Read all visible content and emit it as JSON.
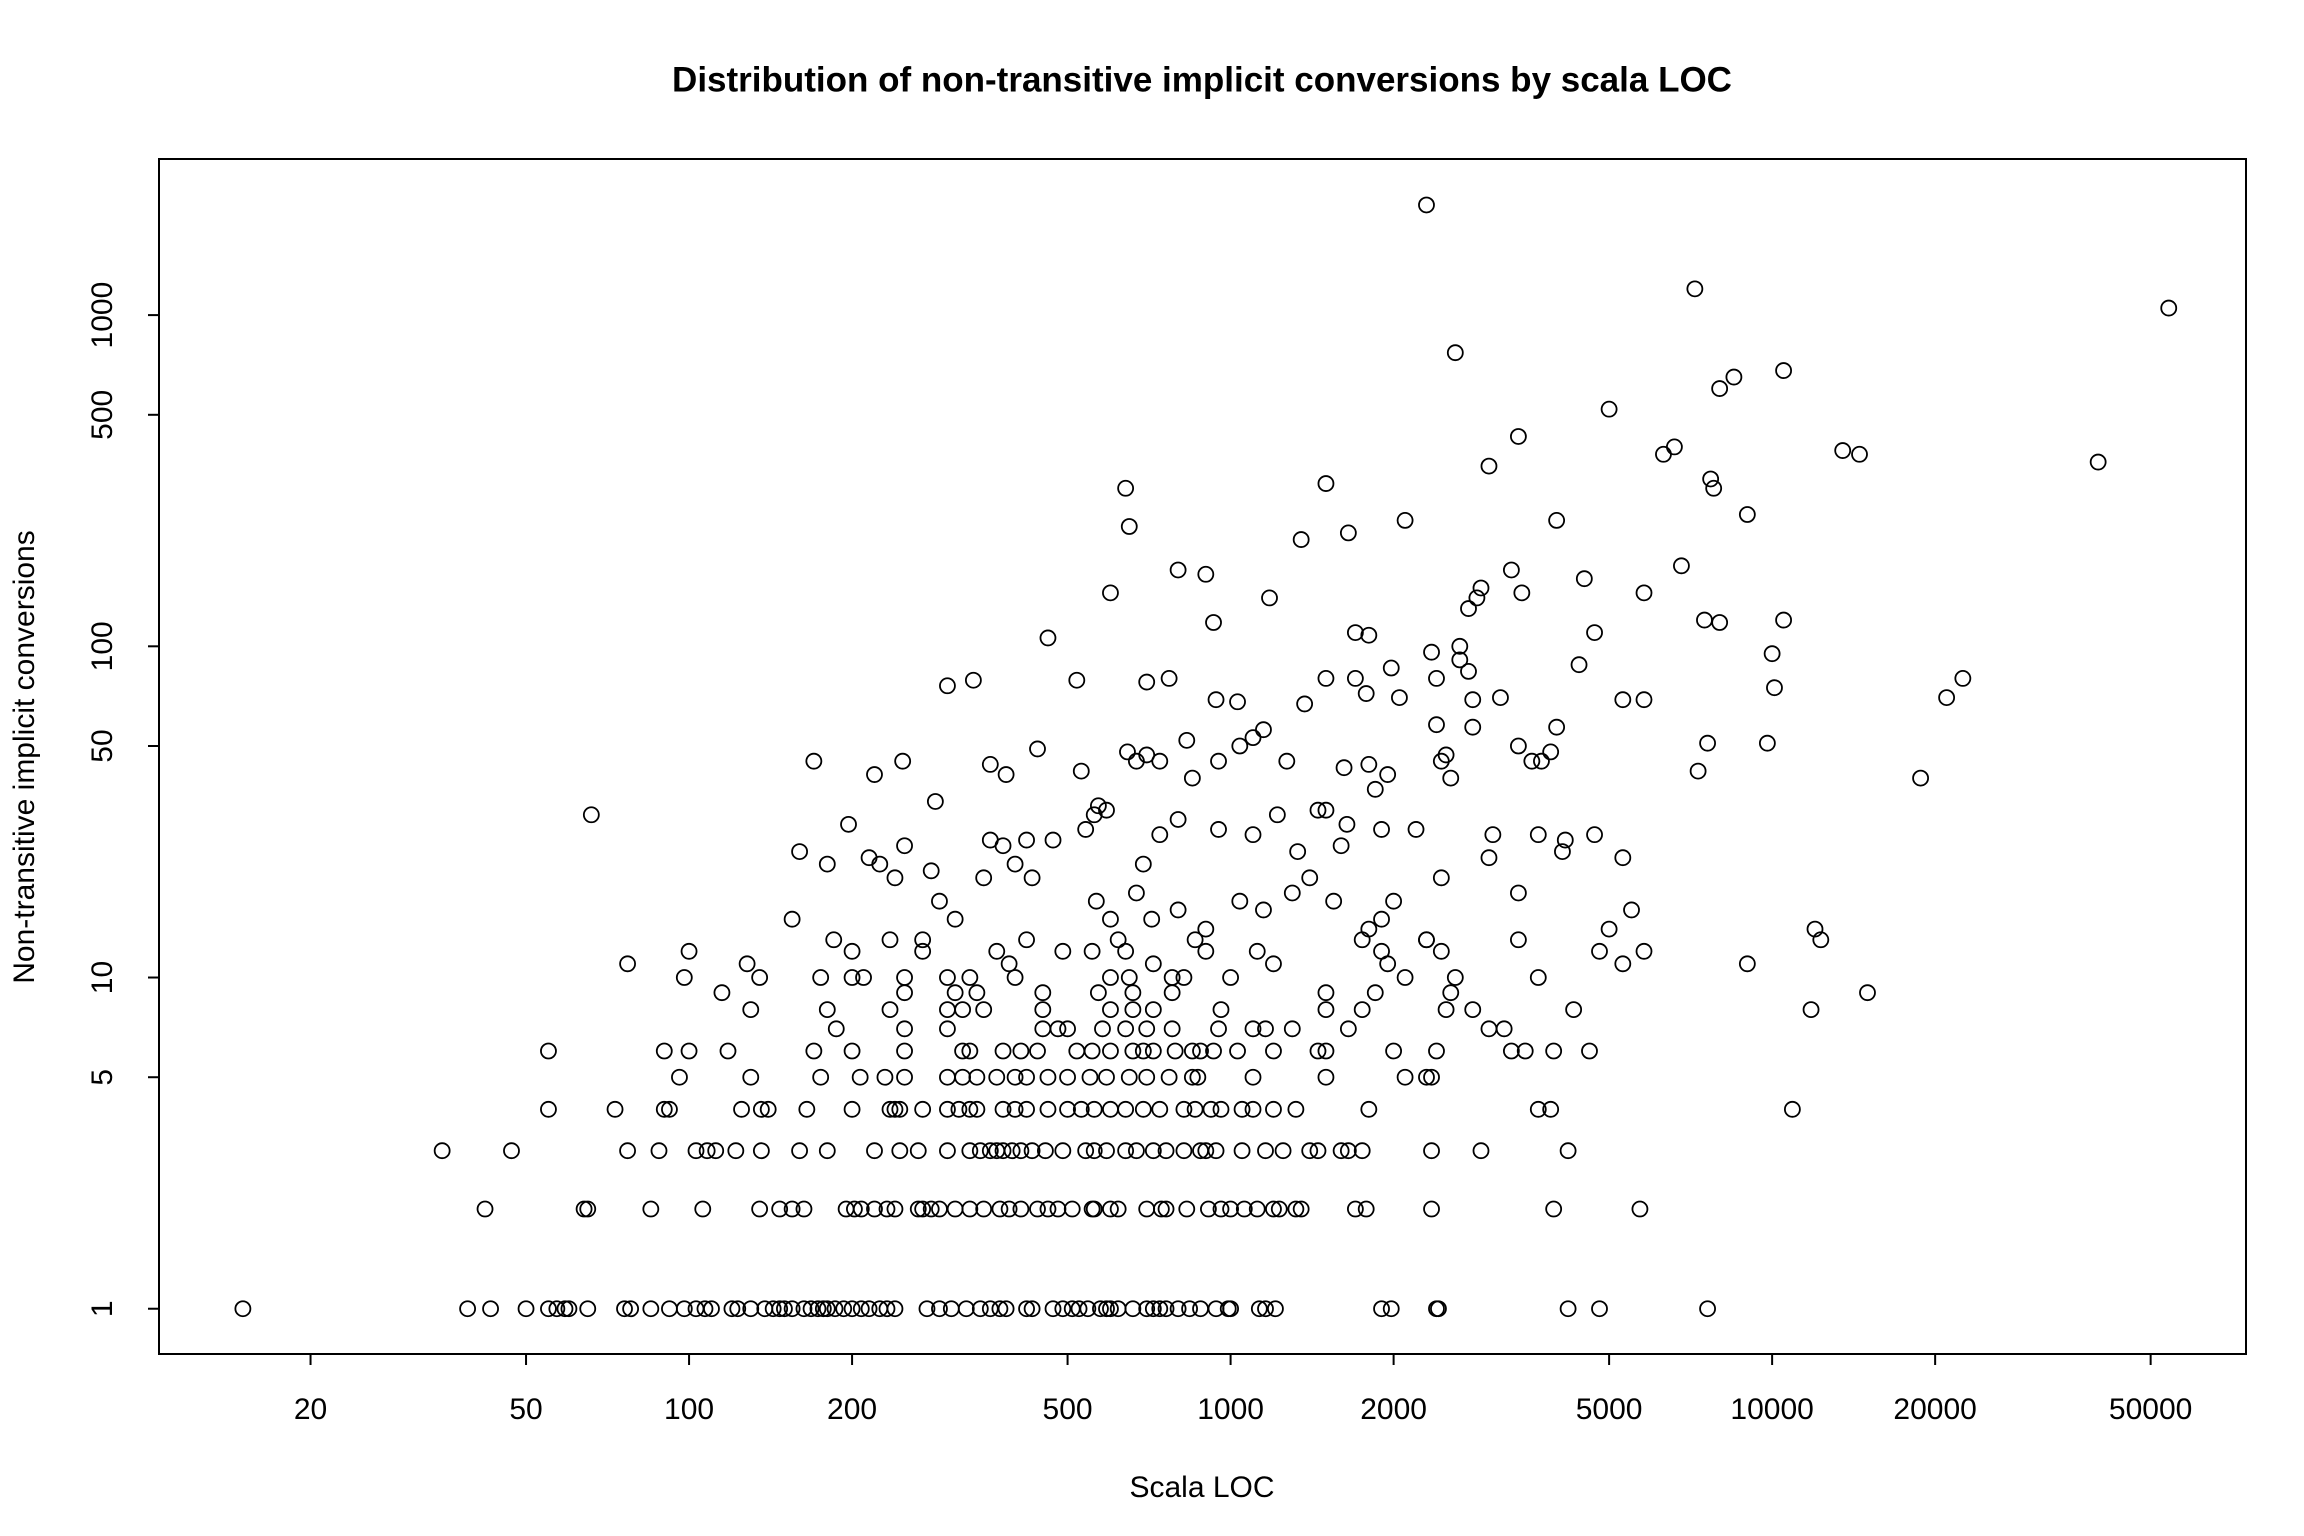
{
  "chart_data": {
    "type": "scatter",
    "title": "Distribution of non-transitive implicit conversions by scala LOC",
    "x_label": "Scala LOC",
    "y_label": "Non-transitive implicit conversions",
    "x_log": true,
    "y_log": true,
    "color": "#000000",
    "xlim": [
      10.5,
      75000
    ],
    "ylim": [
      0.73,
      2960
    ],
    "xticks": [
      20,
      50,
      100,
      200,
      500,
      1000,
      2000,
      5000,
      10000,
      20000,
      50000
    ],
    "yticks": [
      1,
      5,
      10,
      50,
      100,
      500,
      1000
    ],
    "x": [
      15,
      39,
      43,
      50,
      55,
      57,
      59,
      60,
      65,
      76,
      78,
      85,
      92,
      98,
      103,
      107,
      110,
      120,
      123,
      130,
      138,
      143,
      147,
      150,
      155,
      163,
      168,
      173,
      177,
      180,
      186,
      193,
      200,
      208,
      215,
      225,
      232,
      240,
      275,
      290,
      305,
      325,
      345,
      360,
      375,
      385,
      420,
      430,
      470,
      490,
      510,
      525,
      545,
      575,
      590,
      600,
      620,
      660,
      700,
      720,
      740,
      760,
      800,
      840,
      880,
      940,
      990,
      1000,
      1130,
      1160,
      1210,
      1900,
      1980,
      2400,
      2420,
      4200,
      4800,
      7600,
      42,
      64,
      65,
      85,
      106,
      135,
      147,
      155,
      163,
      195,
      202,
      208,
      220,
      232,
      240,
      265,
      270,
      280,
      290,
      310,
      330,
      350,
      375,
      390,
      410,
      440,
      460,
      480,
      510,
      555,
      560,
      600,
      620,
      700,
      745,
      760,
      830,
      910,
      960,
      1000,
      1060,
      1120,
      1200,
      1230,
      1320,
      1350,
      1700,
      1780,
      2350,
      3950,
      5700,
      35,
      47,
      77,
      88,
      103,
      108,
      112,
      122,
      136,
      160,
      180,
      220,
      245,
      265,
      300,
      330,
      345,
      360,
      370,
      380,
      395,
      410,
      430,
      455,
      490,
      540,
      560,
      590,
      640,
      670,
      720,
      760,
      820,
      880,
      900,
      940,
      1050,
      1160,
      1250,
      1400,
      1450,
      1600,
      1650,
      1750,
      2350,
      2900,
      4200,
      55,
      73,
      90,
      92,
      125,
      136,
      140,
      165,
      200,
      235,
      240,
      245,
      270,
      300,
      315,
      330,
      340,
      380,
      400,
      420,
      460,
      500,
      530,
      560,
      600,
      640,
      690,
      740,
      820,
      860,
      920,
      960,
      1050,
      1100,
      1200,
      1320,
      1800,
      3700,
      3900,
      10900,
      96,
      130,
      175,
      207,
      230,
      250,
      300,
      320,
      340,
      370,
      400,
      420,
      460,
      500,
      550,
      590,
      650,
      700,
      770,
      850,
      870,
      1100,
      1500,
      2100,
      2300,
      2350,
      55,
      90,
      100,
      118,
      170,
      200,
      250,
      320,
      330,
      380,
      410,
      440,
      520,
      555,
      600,
      660,
      690,
      720,
      790,
      850,
      880,
      930,
      1030,
      1200,
      1450,
      1500,
      2000,
      2400,
      3300,
      3500,
      3950,
      4600,
      187,
      250,
      300,
      450,
      480,
      500,
      580,
      640,
      700,
      780,
      950,
      1100,
      1160,
      1300,
      1650,
      3000,
      3200,
      130,
      180,
      235,
      300,
      320,
      350,
      450,
      600,
      660,
      720,
      960,
      1500,
      1750,
      2500,
      2800,
      4300,
      11800,
      115,
      250,
      310,
      340,
      450,
      570,
      660,
      780,
      1500,
      1850,
      2550,
      15000,
      98,
      135,
      175,
      200,
      250,
      300,
      330,
      400,
      600,
      650,
      780,
      820,
      1000,
      2100,
      2600,
      3700,
      77,
      128,
      390,
      720,
      1200,
      1950,
      5300,
      9000,
      100,
      200,
      270,
      370,
      490,
      555,
      640,
      900,
      1120,
      1900,
      2450,
      4800,
      5800,
      185,
      235,
      270,
      420,
      620,
      860,
      1750,
      2300,
      3400,
      12300,
      155,
      240,
      290,
      310,
      350,
      400,
      430,
      565,
      600,
      670,
      715,
      800,
      900,
      1040,
      1150,
      1300,
      1400,
      1550,
      1600,
      1800,
      1900,
      2000,
      2300,
      2450,
      3000,
      3400,
      4100,
      5000,
      5500,
      12000,
      160,
      180,
      210,
      215,
      225,
      250,
      280,
      360,
      380,
      420,
      470,
      540,
      560,
      690,
      740,
      800,
      950,
      1100,
      1220,
      1330,
      1450,
      1640,
      1900,
      2200,
      3050,
      3700,
      4700,
      5300,
      66,
      197,
      170,
      220,
      248,
      285,
      360,
      385,
      440,
      530,
      570,
      590,
      645,
      670,
      700,
      740,
      830,
      850,
      950,
      1040,
      1100,
      1150,
      1270,
      1370,
      1500,
      1620,
      1800,
      1850,
      1950,
      2050,
      2400,
      2450,
      2500,
      2550,
      2800,
      3150,
      3400,
      3600,
      3750,
      4000,
      3900,
      4150,
      5300,
      5800,
      7300,
      7600,
      9800,
      18800,
      21000,
      22500,
      300,
      335,
      520,
      700,
      770,
      940,
      1030,
      1500,
      1700,
      1780,
      1980,
      2350,
      2650,
      2750,
      2800,
      2400,
      4400,
      4700,
      1700,
      1800,
      2650,
      10000,
      10100,
      7500,
      8000,
      10500,
      460,
      600,
      930,
      1180,
      800,
      900,
      1350,
      1650,
      2100,
      2750,
      2850,
      2900,
      3300,
      3450,
      4500,
      5800,
      6800,
      650,
      640,
      1500,
      3000,
      3400,
      5000,
      6300,
      6600,
      7800,
      7700,
      8000,
      8500,
      10500,
      9000,
      4000,
      13500,
      14500,
      40000,
      54000,
      7200,
      2600,
      2300
    ],
    "values": [
      1,
      1,
      1,
      1,
      1,
      1,
      1,
      1,
      1,
      1,
      1,
      1,
      1,
      1,
      1,
      1,
      1,
      1,
      1,
      1,
      1,
      1,
      1,
      1,
      1,
      1,
      1,
      1,
      1,
      1,
      1,
      1,
      1,
      1,
      1,
      1,
      1,
      1,
      1,
      1,
      1,
      1,
      1,
      1,
      1,
      1,
      1,
      1,
      1,
      1,
      1,
      1,
      1,
      1,
      1,
      1,
      1,
      1,
      1,
      1,
      1,
      1,
      1,
      1,
      1,
      1,
      1,
      1,
      1,
      1,
      1,
      1,
      1,
      1,
      1,
      1,
      1,
      1,
      2,
      2,
      2,
      2,
      2,
      2,
      2,
      2,
      2,
      2,
      2,
      2,
      2,
      2,
      2,
      2,
      2,
      2,
      2,
      2,
      2,
      2,
      2,
      2,
      2,
      2,
      2,
      2,
      2,
      2,
      2,
      2,
      2,
      2,
      2,
      2,
      2,
      2,
      2,
      2,
      2,
      2,
      2,
      2,
      2,
      2,
      2,
      2,
      2,
      2,
      2,
      3,
      3,
      3,
      3,
      3,
      3,
      3,
      3,
      3,
      3,
      3,
      3,
      3,
      3,
      3,
      3,
      3,
      3,
      3,
      3,
      3,
      3,
      3,
      3,
      3,
      3,
      3,
      3,
      3,
      3,
      3,
      3,
      3,
      3,
      3,
      3,
      3,
      3,
      3,
      3,
      3,
      3,
      3,
      3,
      3,
      3,
      3,
      4,
      4,
      4,
      4,
      4,
      4,
      4,
      4,
      4,
      4,
      4,
      4,
      4,
      4,
      4,
      4,
      4,
      4,
      4,
      4,
      4,
      4,
      4,
      4,
      4,
      4,
      4,
      4,
      4,
      4,
      4,
      4,
      4,
      4,
      4,
      4,
      4,
      4,
      4,
      4,
      5,
      5,
      5,
      5,
      5,
      5,
      5,
      5,
      5,
      5,
      5,
      5,
      5,
      5,
      5,
      5,
      5,
      5,
      5,
      5,
      5,
      5,
      5,
      5,
      5,
      5,
      6,
      6,
      6,
      6,
      6,
      6,
      6,
      6,
      6,
      6,
      6,
      6,
      6,
      6,
      6,
      6,
      6,
      6,
      6,
      6,
      6,
      6,
      6,
      6,
      6,
      6,
      6,
      6,
      6,
      6,
      6,
      6,
      7,
      7,
      7,
      7,
      7,
      7,
      7,
      7,
      7,
      7,
      7,
      7,
      7,
      7,
      7,
      7,
      7,
      8,
      8,
      8,
      8,
      8,
      8,
      8,
      8,
      8,
      8,
      8,
      8,
      8,
      8,
      8,
      8,
      8,
      9,
      9,
      9,
      9,
      9,
      9,
      9,
      9,
      9,
      9,
      9,
      9,
      10,
      10,
      10,
      10,
      10,
      10,
      10,
      10,
      10,
      10,
      10,
      10,
      10,
      10,
      10,
      10,
      11,
      11,
      11,
      11,
      11,
      11,
      11,
      11,
      12,
      12,
      12,
      12,
      12,
      12,
      12,
      12,
      12,
      12,
      12,
      12,
      12,
      13,
      13,
      13,
      13,
      13,
      13,
      13,
      13,
      13,
      13,
      15,
      20,
      17,
      15,
      20,
      22,
      20,
      17,
      15,
      18,
      15,
      16,
      14,
      17,
      16,
      18,
      20,
      17,
      25,
      14,
      15,
      17,
      13,
      20,
      23,
      18,
      24,
      14,
      16,
      14,
      24,
      22,
      10,
      23,
      22,
      25,
      21,
      26,
      25,
      26,
      26,
      28,
      31,
      22,
      27,
      30,
      28,
      27,
      31,
      24,
      32,
      29,
      28,
      28,
      27,
      27,
      27,
      23,
      31,
      29,
      45,
      41,
      45,
      34,
      44,
      41,
      49,
      42,
      33,
      32,
      48,
      45,
      47,
      45,
      52,
      40,
      45,
      50,
      53,
      56,
      45,
      67,
      32,
      43,
      44,
      37,
      41,
      70,
      58,
      45,
      47,
      40,
      57,
      70,
      50,
      45,
      45,
      57,
      48,
      26,
      69,
      69,
      42,
      51,
      51,
      40,
      70,
      80,
      76,
      79,
      79,
      78,
      80,
      69,
      68,
      80,
      80,
      72,
      86,
      96,
      91,
      84,
      69,
      80,
      88,
      110,
      110,
      108,
      100,
      95,
      75,
      120,
      118,
      120,
      106,
      145,
      118,
      140,
      170,
      165,
      210,
      220,
      240,
      130,
      140,
      150,
      170,
      145,
      160,
      145,
      175,
      230,
      300,
      310,
      350,
      430,
      520,
      380,
      400,
      300,
      320,
      600,
      650,
      680,
      250,
      240,
      390,
      380,
      360,
      1050,
      1200,
      770,
      2150
    ]
  }
}
